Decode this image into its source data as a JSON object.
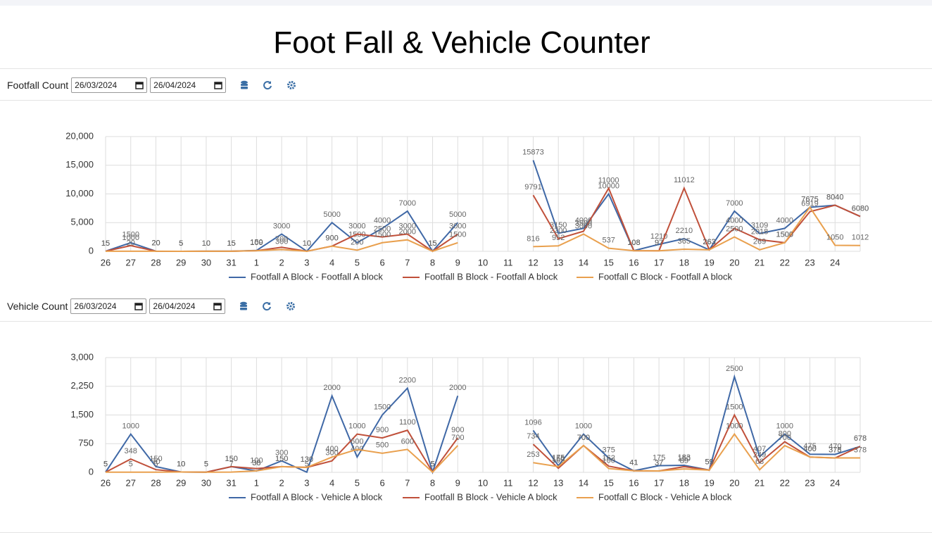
{
  "header": {
    "title": "Foot Fall & Vehicle Counter"
  },
  "footfall_controls": {
    "label": "Footfall Count",
    "from": "26/03/2024",
    "to": "26/04/2024"
  },
  "vehicle_controls": {
    "label": "Vehicle Count",
    "from": "26/03/2024",
    "to": "26/04/2024"
  },
  "chart_data": [
    {
      "type": "line",
      "categories": [
        "26",
        "27",
        "28",
        "29",
        "30",
        "31",
        "1",
        "2",
        "3",
        "4",
        "5",
        "6",
        "7",
        "8",
        "9",
        "10",
        "11",
        "12",
        "13",
        "14",
        "15",
        "16",
        "17",
        "18",
        "19",
        "20",
        "21",
        "22",
        "23",
        "24",
        null
      ],
      "series": [
        {
          "name": "Footfall A Block - Footfall A block",
          "color": "#3f68a6",
          "values": [
            15,
            1500,
            20,
            5,
            10,
            15,
            150,
            3000,
            10,
            5000,
            1500,
            4000,
            7000,
            15,
            5000,
            null,
            null,
            15873,
            3150,
            4000,
            10000,
            108,
            1210,
            2210,
            263,
            7000,
            3109,
            4000,
            7675,
            8040,
            6080
          ]
        },
        {
          "name": "Footfall B Block - Footfall A block",
          "color": "#c0503a",
          "values": [
            15,
            1000,
            20,
            5,
            10,
            15,
            109,
            700,
            10,
            900,
            3000,
            2500,
            3000,
            15,
            3000,
            null,
            null,
            9791,
            2200,
            3500,
            11000,
            108,
            97,
            11012,
            263,
            4000,
            2018,
            1500,
            6919,
            8040,
            6080
          ]
        },
        {
          "name": "Footfall C Block - Footfall A block",
          "color": "#e9a04e",
          "values": [
            15,
            20,
            20,
            5,
            10,
            15,
            100,
            300,
            10,
            900,
            200,
            1500,
            2000,
            15,
            1500,
            null,
            null,
            816,
            952,
            3000,
            537,
            108,
            97,
            365,
            263,
            2500,
            269,
            1500,
            7675,
            1050,
            1012
          ]
        }
      ],
      "ylim": [
        0,
        20000
      ],
      "yticks": [
        0,
        {
          "value": 5000,
          "label": "5,000"
        },
        {
          "value": 10000,
          "label": "10,000"
        },
        {
          "value": 15000,
          "label": "15,000"
        },
        {
          "value": 20000,
          "label": "20,000"
        }
      ],
      "grid": true,
      "legend": "bottom"
    },
    {
      "type": "line",
      "categories": [
        "26",
        "27",
        "28",
        "29",
        "30",
        "31",
        "1",
        "2",
        "3",
        "4",
        "5",
        "6",
        "7",
        "8",
        "9",
        "10",
        "11",
        "12",
        "13",
        "14",
        "15",
        "16",
        "17",
        "18",
        "19",
        "20",
        "21",
        "22",
        "23",
        "24",
        null
      ],
      "series": [
        {
          "name": "Footfall A Block - Vehicle A block",
          "color": "#3f68a6",
          "values": [
            5,
            1000,
            150,
            10,
            5,
            150,
            38,
            300,
            5,
            2000,
            400,
            1500,
            2200,
            5,
            2000,
            null,
            null,
            1096,
            175,
            1000,
            375,
            41,
            175,
            183,
            59,
            2500,
            407,
            1000,
            475,
            470,
            678
          ]
        },
        {
          "name": "Footfall B Block - Vehicle A block",
          "color": "#c0503a",
          "values": [
            5,
            348,
            70,
            10,
            5,
            150,
            100,
            150,
            130,
            300,
            1000,
            900,
            1100,
            5,
            900,
            null,
            null,
            734,
            109,
            700,
            162,
            41,
            37,
            150,
            59,
            1500,
            249,
            800,
            400,
            375,
            678
          ]
        },
        {
          "name": "Footfall C Block - Vehicle A block",
          "color": "#e9a04e",
          "values": [
            5,
            5,
            5,
            10,
            5,
            7,
            38,
            150,
            130,
            400,
            600,
            500,
            600,
            5,
            700,
            null,
            null,
            253,
            150,
            700,
            100,
            41,
            37,
            89,
            59,
            1000,
            68,
            700,
            400,
            378,
            378
          ]
        }
      ],
      "ylim": [
        0,
        3000
      ],
      "yticks": [
        0,
        750,
        {
          "value": 1500,
          "label": "1,500"
        },
        {
          "value": 2250,
          "label": "2,250"
        },
        {
          "value": 3000,
          "label": "3,000"
        }
      ],
      "grid": true,
      "legend": "bottom"
    }
  ]
}
